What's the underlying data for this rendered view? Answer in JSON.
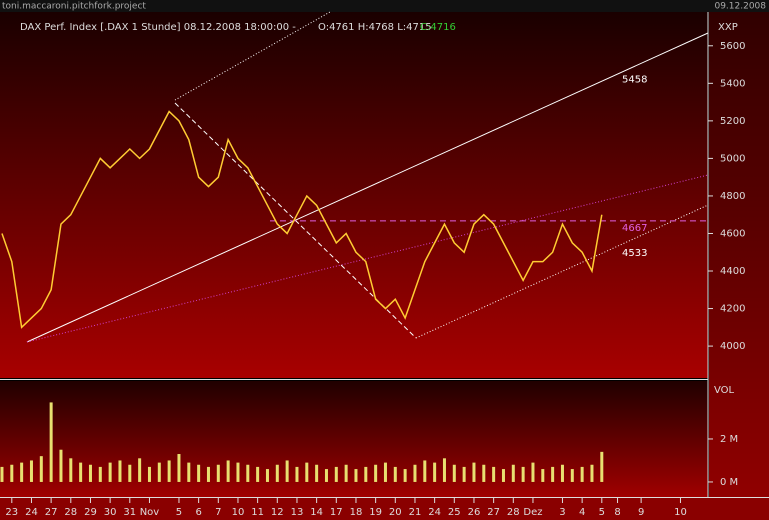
{
  "header": {
    "project": "toni.maccaroni.pitchfork.project",
    "date": "09.12.2008"
  },
  "chart_data": {
    "type": "line",
    "title": "DAX Perf. Index [.DAX  1 Stunde] 08.12.2008 18:00:00 -",
    "ohlc_text": "O:4761 H:4768 L:4715",
    "close_text": "C:4716",
    "axis_label": "XXP",
    "volume_label": "VOL",
    "x": [
      -0.5,
      0,
      0.5,
      1,
      1.5,
      2,
      2.5,
      3,
      3.5,
      4,
      4.5,
      5,
      5.5,
      6,
      6.5,
      7,
      7.5,
      8,
      8.5,
      9,
      9.5,
      10,
      10.5,
      11,
      11.5,
      12,
      12.5,
      13,
      13.5,
      14,
      14.5,
      15,
      15.5,
      16,
      16.5,
      17,
      17.5,
      18,
      18.5,
      19,
      19.5,
      20,
      20.5,
      21,
      21.5,
      22,
      22.5,
      23,
      23.5,
      24,
      24.5,
      25,
      25.5,
      26,
      26.5,
      27,
      27.5,
      28,
      28.5,
      29,
      29.5,
      30
    ],
    "series": [
      {
        "name": "DAX",
        "color": "#ffcc33",
        "values": [
          4600,
          4450,
          4100,
          4150,
          4200,
          4300,
          4650,
          4700,
          4800,
          4900,
          5000,
          4950,
          5000,
          5050,
          5000,
          5050,
          5150,
          5250,
          5200,
          5100,
          4900,
          4850,
          4900,
          5100,
          5000,
          4950,
          4850,
          4750,
          4650,
          4600,
          4700,
          4800,
          4750,
          4650,
          4550,
          4600,
          4500,
          4450,
          4250,
          4200,
          4250,
          4150,
          4300,
          4450,
          4550,
          4650,
          4550,
          4500,
          4650,
          4700,
          4650,
          4550,
          4450,
          4350,
          4450,
          4450,
          4500,
          4650,
          4550,
          4500,
          4400,
          4700
        ]
      }
    ],
    "volume": {
      "color": "#e8e070",
      "values": [
        0.7,
        0.8,
        0.9,
        1.0,
        1.2,
        3.7,
        1.5,
        1.1,
        0.9,
        0.8,
        0.7,
        0.9,
        1.0,
        0.8,
        1.1,
        0.7,
        0.9,
        1.0,
        1.3,
        0.9,
        0.8,
        0.7,
        0.8,
        1.0,
        0.9,
        0.8,
        0.7,
        0.6,
        0.8,
        1.0,
        0.7,
        0.9,
        0.8,
        0.6,
        0.7,
        0.8,
        0.6,
        0.7,
        0.8,
        0.9,
        0.7,
        0.6,
        0.8,
        1.0,
        0.9,
        1.1,
        0.8,
        0.7,
        0.9,
        0.8,
        0.7,
        0.6,
        0.8,
        0.7,
        0.9,
        0.6,
        0.7,
        0.8,
        0.6,
        0.7,
        0.8,
        1.4
      ]
    },
    "annotations": [
      5458,
      4667,
      4533
    ],
    "xlim": [
      -0.6,
      35.4
    ],
    "xticks": [
      {
        "value": 0,
        "label": "23"
      },
      {
        "value": 1,
        "label": "24"
      },
      {
        "value": 2,
        "label": "27"
      },
      {
        "value": 3,
        "label": "28"
      },
      {
        "value": 4,
        "label": "29"
      },
      {
        "value": 5,
        "label": "30"
      },
      {
        "value": 6,
        "label": "31"
      },
      {
        "value": 7,
        "label": "Nov"
      },
      {
        "value": 8.5,
        "label": "5"
      },
      {
        "value": 9.5,
        "label": "6"
      },
      {
        "value": 10.5,
        "label": "7"
      },
      {
        "value": 11.5,
        "label": "10"
      },
      {
        "value": 12.5,
        "label": "11"
      },
      {
        "value": 13.5,
        "label": "12"
      },
      {
        "value": 14.5,
        "label": "13"
      },
      {
        "value": 15.5,
        "label": "14"
      },
      {
        "value": 16.5,
        "label": "17"
      },
      {
        "value": 17.5,
        "label": "18"
      },
      {
        "value": 18.5,
        "label": "19"
      },
      {
        "value": 19.5,
        "label": "20"
      },
      {
        "value": 20.5,
        "label": "21"
      },
      {
        "value": 21.5,
        "label": "24"
      },
      {
        "value": 22.5,
        "label": "25"
      },
      {
        "value": 23.5,
        "label": "26"
      },
      {
        "value": 24.5,
        "label": "27"
      },
      {
        "value": 25.5,
        "label": "28"
      },
      {
        "value": 26.5,
        "label": "Dez"
      },
      {
        "value": 28,
        "label": "3"
      },
      {
        "value": 29,
        "label": "4"
      },
      {
        "value": 30,
        "label": "5"
      },
      {
        "value": 30.8,
        "label": "8"
      },
      {
        "value": 32,
        "label": "9"
      },
      {
        "value": 34,
        "label": "10"
      }
    ],
    "ylim": [
      3830,
      5780
    ],
    "yticks": [
      4000,
      4200,
      4400,
      4600,
      4800,
      5000,
      5200,
      5400,
      5600
    ],
    "vol_ylim": [
      -0.7,
      4.65
    ],
    "vol_yticks": [
      {
        "value": 0,
        "label": "0 M"
      },
      {
        "value": 2,
        "label": "2 M"
      }
    ]
  }
}
